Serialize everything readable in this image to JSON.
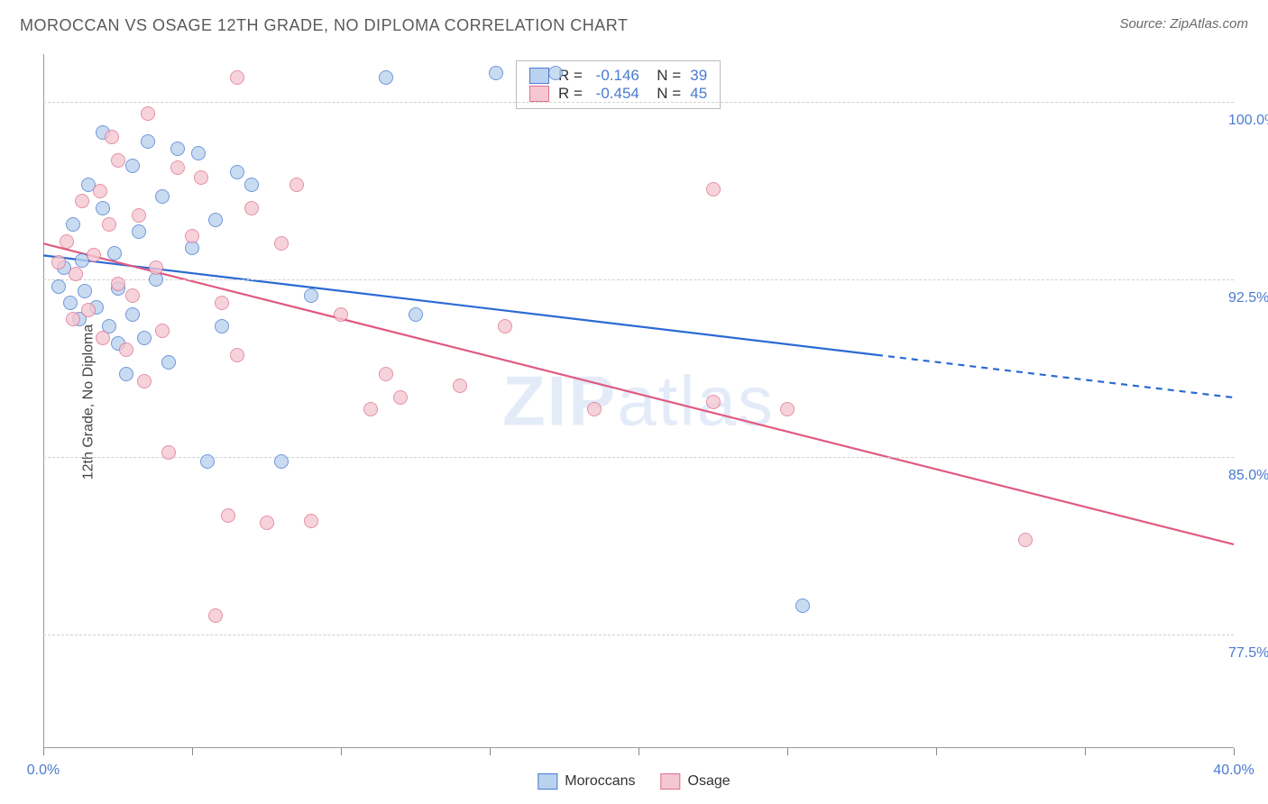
{
  "title": "MOROCCAN VS OSAGE 12TH GRADE, NO DIPLOMA CORRELATION CHART",
  "source": "Source: ZipAtlas.com",
  "ylabel": "12th Grade, No Diploma",
  "watermark": {
    "bold": "ZIP",
    "rest": "atlas"
  },
  "chart": {
    "type": "scatter",
    "xlim": [
      0,
      40
    ],
    "ylim": [
      72.7,
      102
    ],
    "x_ticks": [
      0,
      5,
      10,
      15,
      20,
      25,
      30,
      35,
      40
    ],
    "x_labels": {
      "0": "0.0%",
      "40": "40.0%"
    },
    "y_ticks": [
      77.5,
      85.0,
      92.5,
      100.0
    ],
    "y_label_fmt": [
      "77.5%",
      "85.0%",
      "92.5%",
      "100.0%"
    ],
    "grid_color": "#d0d0d0",
    "point_radius": 8,
    "series": [
      {
        "name": "Moroccans",
        "fill": "#b9d2ee",
        "stroke": "#4a7bd0",
        "line_color": "#2a6ad4",
        "line_width": 2.2,
        "R": "-0.146",
        "N": "39",
        "trend": {
          "x1": 0,
          "y1": 93.5,
          "x2_solid": 28,
          "y2_solid": 89.3,
          "x2": 40,
          "y2": 87.5
        },
        "points": [
          [
            0.5,
            92.2
          ],
          [
            0.7,
            93.0
          ],
          [
            0.9,
            91.5
          ],
          [
            1.0,
            94.8
          ],
          [
            1.2,
            90.8
          ],
          [
            1.3,
            93.3
          ],
          [
            1.4,
            92.0
          ],
          [
            1.5,
            96.5
          ],
          [
            1.8,
            91.3
          ],
          [
            2.0,
            98.7
          ],
          [
            2.0,
            95.5
          ],
          [
            2.2,
            90.5
          ],
          [
            2.4,
            93.6
          ],
          [
            2.5,
            92.1
          ],
          [
            2.5,
            89.8
          ],
          [
            2.8,
            88.5
          ],
          [
            3.0,
            97.3
          ],
          [
            3.0,
            91.0
          ],
          [
            3.2,
            94.5
          ],
          [
            3.4,
            90.0
          ],
          [
            3.5,
            98.3
          ],
          [
            3.8,
            92.5
          ],
          [
            4.0,
            96.0
          ],
          [
            4.2,
            89.0
          ],
          [
            4.5,
            98.0
          ],
          [
            5.0,
            93.8
          ],
          [
            5.2,
            97.8
          ],
          [
            5.5,
            84.8
          ],
          [
            5.8,
            95.0
          ],
          [
            6.0,
            90.5
          ],
          [
            6.5,
            97.0
          ],
          [
            7.0,
            96.5
          ],
          [
            8.0,
            84.8
          ],
          [
            9.0,
            91.8
          ],
          [
            11.5,
            101.0
          ],
          [
            12.5,
            91.0
          ],
          [
            15.2,
            101.2
          ],
          [
            17.2,
            101.2
          ],
          [
            25.5,
            78.7
          ]
        ]
      },
      {
        "name": "Osage",
        "fill": "#f4c7d2",
        "stroke": "#e0718e",
        "line_color": "#e05a80",
        "line_width": 2.2,
        "R": "-0.454",
        "N": "45",
        "trend": {
          "x1": 0,
          "y1": 94.0,
          "x2_solid": 40,
          "y2_solid": 81.3,
          "x2": 40,
          "y2": 81.3
        },
        "points": [
          [
            0.5,
            93.2
          ],
          [
            0.8,
            94.1
          ],
          [
            1.0,
            90.8
          ],
          [
            1.1,
            92.7
          ],
          [
            1.3,
            95.8
          ],
          [
            1.5,
            91.2
          ],
          [
            1.7,
            93.5
          ],
          [
            1.9,
            96.2
          ],
          [
            2.0,
            90.0
          ],
          [
            2.2,
            94.8
          ],
          [
            2.3,
            98.5
          ],
          [
            2.5,
            97.5
          ],
          [
            2.5,
            92.3
          ],
          [
            2.8,
            89.5
          ],
          [
            3.0,
            91.8
          ],
          [
            3.2,
            95.2
          ],
          [
            3.4,
            88.2
          ],
          [
            3.5,
            99.5
          ],
          [
            3.8,
            93.0
          ],
          [
            4.0,
            90.3
          ],
          [
            4.2,
            85.2
          ],
          [
            4.5,
            97.2
          ],
          [
            5.0,
            94.3
          ],
          [
            5.3,
            96.8
          ],
          [
            5.8,
            78.3
          ],
          [
            6.0,
            91.5
          ],
          [
            6.2,
            82.5
          ],
          [
            6.5,
            89.3
          ],
          [
            6.5,
            101.0
          ],
          [
            7.0,
            95.5
          ],
          [
            7.5,
            82.2
          ],
          [
            8.0,
            94.0
          ],
          [
            8.5,
            96.5
          ],
          [
            9.0,
            82.3
          ],
          [
            10.0,
            91.0
          ],
          [
            11.0,
            87.0
          ],
          [
            11.5,
            88.5
          ],
          [
            12.0,
            87.5
          ],
          [
            14.0,
            88.0
          ],
          [
            15.5,
            90.5
          ],
          [
            18.5,
            87.0
          ],
          [
            22.5,
            96.3
          ],
          [
            22.5,
            87.3
          ],
          [
            25.0,
            87.0
          ],
          [
            33.0,
            81.5
          ]
        ]
      }
    ],
    "legend_bottom": [
      {
        "label": "Moroccans",
        "fill": "#b9d2ee",
        "stroke": "#4a7bd0"
      },
      {
        "label": "Osage",
        "fill": "#f4c7d2",
        "stroke": "#e0718e"
      }
    ]
  }
}
